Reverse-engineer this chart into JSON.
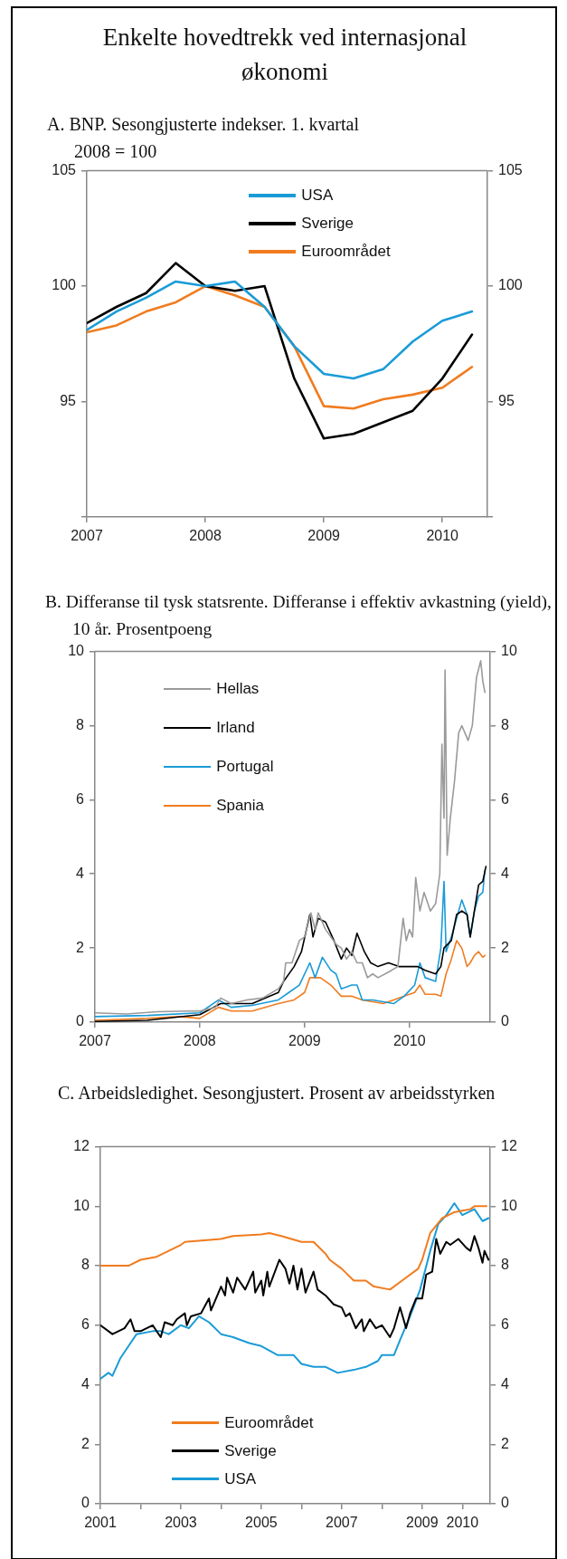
{
  "chart_data": [
    {
      "type": "line",
      "title": "Enkelte hovedtrekk ved internasjonal økonomi",
      "subtitle": "A.   BNP. Sesongjusterte indekser. 1. kvartal 2008 = 100",
      "x": [
        2007,
        2007.25,
        2007.5,
        2007.75,
        2008,
        2008.25,
        2008.5,
        2008.75,
        2009,
        2009.25,
        2009.5,
        2009.75,
        2010,
        2010.25
      ],
      "series": [
        {
          "name": "USA",
          "color": "#1a9bd7",
          "values": [
            98.1,
            98.9,
            99.5,
            100.2,
            100.0,
            100.2,
            99.1,
            97.4,
            96.2,
            96.0,
            96.4,
            97.6,
            98.5,
            98.9
          ]
        },
        {
          "name": "Sverige",
          "color": "#000000",
          "values": [
            98.4,
            99.1,
            99.7,
            101.0,
            100.0,
            99.8,
            100.0,
            96.0,
            93.4,
            93.6,
            94.1,
            94.6,
            96.0,
            97.9
          ]
        },
        {
          "name": "Euroområdet",
          "color": "#f07c1f",
          "values": [
            98.0,
            98.3,
            98.9,
            99.3,
            100.0,
            99.6,
            99.1,
            97.4,
            94.8,
            94.7,
            95.1,
            95.3,
            95.6,
            96.5
          ]
        }
      ],
      "xlim": [
        2007,
        2010.38
      ],
      "xticks": [
        2007,
        2008,
        2009,
        2010
      ],
      "ylim": [
        90,
        105
      ],
      "yticks": [
        {
          "value": 90,
          "label": null
        },
        95,
        100,
        105
      ],
      "y2lim": [
        90,
        105
      ],
      "y2ticks": [
        {
          "value": 90,
          "label": null
        },
        95,
        100,
        105
      ],
      "legend": "top",
      "line_style": "solid",
      "marker": "none"
    },
    {
      "type": "line",
      "title": "B.  Differanse til tysk statsrente. Differanse i effektiv avkastning (yield), 10 år. Prosentpoeng",
      "series": [
        {
          "name": "Hellas",
          "color": "#9a9a9a",
          "x": [
            2007,
            2007.3,
            2007.6,
            2007.9,
            2008,
            2008.15,
            2008.2,
            2008.3,
            2008.45,
            2008.6,
            2008.75,
            2008.8,
            2008.82,
            2008.88,
            2008.95,
            2009,
            2009.06,
            2009.1,
            2009.13,
            2009.2,
            2009.3,
            2009.35,
            2009.4,
            2009.45,
            2009.5,
            2009.55,
            2009.6,
            2009.65,
            2009.7,
            2009.8,
            2009.89,
            2009.94,
            2009.97,
            2010,
            2010.03,
            2010.06,
            2010.1,
            2010.14,
            2010.2,
            2010.25,
            2010.29,
            2010.31,
            2010.33,
            2010.34,
            2010.36,
            2010.39,
            2010.43,
            2010.47,
            2010.5,
            2010.53,
            2010.56,
            2010.6,
            2010.64,
            2010.68,
            2010.7,
            2010.72
          ],
          "values": [
            0.25,
            0.22,
            0.28,
            0.3,
            0.3,
            0.4,
            0.65,
            0.5,
            0.6,
            0.65,
            0.9,
            1.1,
            1.6,
            1.6,
            2.2,
            2.3,
            2.95,
            2.5,
            2.95,
            2.5,
            2.1,
            2.0,
            1.7,
            1.9,
            1.6,
            1.6,
            1.2,
            1.3,
            1.2,
            1.35,
            1.5,
            2.8,
            2.2,
            2.5,
            2.3,
            3.9,
            3.0,
            3.5,
            3.0,
            3.2,
            4.0,
            7.5,
            5.5,
            9.5,
            4.5,
            5.5,
            6.5,
            7.8,
            8.0,
            7.8,
            7.6,
            8.0,
            9.3,
            9.75,
            9.2,
            8.9
          ]
        },
        {
          "name": "Irland",
          "color": "#000000",
          "x": [
            2007,
            2007.5,
            2008,
            2008.2,
            2008.5,
            2008.75,
            2008.8,
            2008.9,
            2008.97,
            2009.05,
            2009.08,
            2009.13,
            2009.2,
            2009.28,
            2009.35,
            2009.4,
            2009.45,
            2009.5,
            2009.57,
            2009.63,
            2009.7,
            2009.8,
            2009.9,
            2010,
            2010.08,
            2010.15,
            2010.25,
            2010.3,
            2010.33,
            2010.4,
            2010.45,
            2010.5,
            2010.55,
            2010.58,
            2010.62,
            2010.66,
            2010.7,
            2010.73
          ],
          "values": [
            0.02,
            0.05,
            0.2,
            0.5,
            0.5,
            0.8,
            1.1,
            1.5,
            1.9,
            2.9,
            2.3,
            2.8,
            2.7,
            2.2,
            1.7,
            2.0,
            1.8,
            2.4,
            1.9,
            1.6,
            1.5,
            1.6,
            1.5,
            1.5,
            1.5,
            1.4,
            1.3,
            1.5,
            2.0,
            2.2,
            2.9,
            3.0,
            2.9,
            2.3,
            3.0,
            3.7,
            3.8,
            4.2
          ]
        },
        {
          "name": "Portugal",
          "color": "#1a9bd7",
          "x": [
            2007,
            2007.5,
            2008,
            2008.18,
            2008.3,
            2008.5,
            2008.75,
            2008.85,
            2008.95,
            2009.05,
            2009.1,
            2009.17,
            2009.25,
            2009.3,
            2009.35,
            2009.45,
            2009.5,
            2009.55,
            2009.65,
            2009.75,
            2009.85,
            2009.95,
            2010.05,
            2010.1,
            2010.15,
            2010.25,
            2010.3,
            2010.33,
            2010.35,
            2010.4,
            2010.45,
            2010.5,
            2010.55,
            2010.58,
            2010.62,
            2010.66,
            2010.7,
            2010.72
          ],
          "values": [
            0.15,
            0.18,
            0.25,
            0.6,
            0.4,
            0.45,
            0.6,
            0.8,
            1.0,
            1.6,
            1.2,
            1.75,
            1.4,
            1.3,
            0.9,
            1.0,
            1.0,
            0.6,
            0.6,
            0.55,
            0.5,
            0.7,
            1.0,
            1.6,
            1.2,
            1.1,
            2.0,
            3.8,
            1.9,
            2.3,
            2.8,
            3.3,
            2.9,
            2.3,
            3.0,
            3.4,
            3.5,
            4.1
          ]
        },
        {
          "name": "Spania",
          "color": "#f07c1f",
          "x": [
            2007,
            2007.5,
            2007.8,
            2008,
            2008.18,
            2008.3,
            2008.5,
            2008.75,
            2008.9,
            2009,
            2009.05,
            2009.15,
            2009.25,
            2009.35,
            2009.45,
            2009.55,
            2009.65,
            2009.75,
            2009.85,
            2009.95,
            2010.05,
            2010.1,
            2010.15,
            2010.25,
            2010.3,
            2010.35,
            2010.4,
            2010.45,
            2010.5,
            2010.55,
            2010.58,
            2010.62,
            2010.66,
            2010.7,
            2010.72
          ],
          "values": [
            0.05,
            0.1,
            0.15,
            0.1,
            0.4,
            0.3,
            0.3,
            0.5,
            0.6,
            0.8,
            1.2,
            1.2,
            1.0,
            0.7,
            0.7,
            0.6,
            0.55,
            0.5,
            0.6,
            0.7,
            0.8,
            1.0,
            0.75,
            0.75,
            0.7,
            1.3,
            1.7,
            2.2,
            2.0,
            1.5,
            1.6,
            1.8,
            1.9,
            1.75,
            1.8
          ]
        }
      ],
      "xlim": [
        2007,
        2010.77
      ],
      "xticks": [
        2007,
        2008,
        2009,
        2010
      ],
      "ylim": [
        0,
        10
      ],
      "yticks": [
        0,
        2,
        4,
        6,
        8,
        10
      ],
      "y2lim": [
        0,
        10
      ],
      "y2ticks": [
        0,
        2,
        4,
        6,
        8,
        10
      ],
      "legend": "top left",
      "line_style": "solid",
      "marker": "none"
    },
    {
      "type": "line",
      "title": "C.  Arbeidsledighet. Sesongjustert. Prosent av arbeidsstyrken",
      "series": [
        {
          "name": "Euroområdet",
          "color": "#f07c1f",
          "x": [
            2001,
            2001.7,
            2002,
            2002.4,
            2002.7,
            2003,
            2003.1,
            2004,
            2004.3,
            2005,
            2005.2,
            2005.5,
            2006,
            2006.3,
            2006.6,
            2006.7,
            2007,
            2007.3,
            2007.6,
            2007.8,
            2008.2,
            2008.5,
            2008.9,
            2009,
            2009.2,
            2009.5,
            2009.8,
            2010.2,
            2010.3,
            2010.6
          ],
          "values": [
            8.0,
            8.0,
            8.2,
            8.3,
            8.5,
            8.7,
            8.8,
            8.9,
            9.0,
            9.05,
            9.1,
            9.0,
            8.8,
            8.8,
            8.4,
            8.2,
            7.9,
            7.5,
            7.5,
            7.3,
            7.2,
            7.5,
            7.9,
            8.2,
            9.1,
            9.6,
            9.8,
            9.9,
            10.0,
            10.0
          ]
        },
        {
          "name": "Sverige",
          "color": "#000000",
          "x": [
            2001,
            2001.3,
            2001.6,
            2001.75,
            2001.85,
            2002,
            2002.3,
            2002.5,
            2002.6,
            2002.8,
            2002.9,
            2003.1,
            2003.15,
            2003.25,
            2003.5,
            2003.7,
            2003.75,
            2004,
            2004.1,
            2004.15,
            2004.3,
            2004.4,
            2004.6,
            2004.8,
            2004.85,
            2005,
            2005.05,
            2005.15,
            2005.2,
            2005.45,
            2005.6,
            2005.7,
            2005.8,
            2005.9,
            2006,
            2006.1,
            2006.3,
            2006.4,
            2006.6,
            2006.8,
            2007,
            2007.1,
            2007.2,
            2007.35,
            2007.5,
            2007.55,
            2007.7,
            2007.85,
            2008,
            2008.2,
            2008.3,
            2008.45,
            2008.6,
            2008.7,
            2008.85,
            2009,
            2009.1,
            2009.25,
            2009.35,
            2009.45,
            2009.6,
            2009.7,
            2009.9,
            2010.1,
            2010.2,
            2010.3,
            2010.4,
            2010.5,
            2010.55,
            2010.65
          ],
          "values": [
            6.0,
            5.7,
            5.9,
            6.2,
            5.8,
            5.8,
            6.0,
            5.6,
            6.1,
            6.0,
            6.2,
            6.4,
            6.0,
            6.3,
            6.4,
            6.9,
            6.5,
            7.3,
            7.0,
            7.6,
            7.1,
            7.6,
            7.2,
            7.8,
            7.1,
            7.5,
            7.0,
            7.8,
            7.3,
            8.2,
            7.9,
            7.4,
            8.0,
            7.2,
            7.9,
            7.1,
            7.8,
            7.2,
            7.0,
            6.7,
            6.6,
            6.3,
            6.4,
            5.9,
            6.2,
            5.8,
            6.2,
            5.9,
            6.0,
            5.6,
            5.9,
            6.6,
            5.9,
            6.4,
            6.9,
            6.9,
            7.7,
            7.8,
            8.9,
            8.4,
            8.8,
            8.7,
            8.9,
            8.6,
            8.5,
            9.0,
            8.6,
            8.1,
            8.5,
            8.2
          ]
        },
        {
          "name": "USA",
          "color": "#1a9bd7",
          "x": [
            2001,
            2001.2,
            2001.3,
            2001.5,
            2001.7,
            2001.9,
            2002.3,
            2002.5,
            2002.7,
            2003,
            2003.2,
            2003.45,
            2003.7,
            2004,
            2004.3,
            2004.7,
            2005,
            2005.4,
            2005.8,
            2006,
            2006.3,
            2006.6,
            2006.9,
            2007.3,
            2007.6,
            2007.9,
            2008,
            2008.3,
            2008.45,
            2008.7,
            2008.95,
            2009.2,
            2009.4,
            2009.6,
            2009.8,
            2010,
            2010.3,
            2010.5,
            2010.65
          ],
          "values": [
            4.2,
            4.4,
            4.3,
            4.9,
            5.3,
            5.7,
            5.8,
            5.8,
            5.7,
            6.0,
            5.9,
            6.3,
            6.1,
            5.7,
            5.6,
            5.4,
            5.3,
            5.0,
            5.0,
            4.7,
            4.6,
            4.6,
            4.4,
            4.5,
            4.6,
            4.8,
            5.0,
            5.0,
            5.5,
            6.3,
            7.2,
            8.5,
            9.4,
            9.7,
            10.1,
            9.7,
            9.9,
            9.5,
            9.6
          ]
        }
      ],
      "xlim": [
        2001,
        2010.69
      ],
      "xticks": [
        2001,
        {
          "value": 2002,
          "label": null
        },
        2003,
        {
          "value": 2004,
          "label": null
        },
        2005,
        {
          "value": 2006,
          "label": null
        },
        2007,
        {
          "value": 2008,
          "label": null
        },
        2009,
        2010
      ],
      "ylim": [
        0,
        12
      ],
      "yticks": [
        0,
        2,
        4,
        6,
        8,
        10,
        12
      ],
      "y2lim": [
        0,
        12
      ],
      "y2ticks": [
        0,
        2,
        4,
        6,
        8,
        10,
        12
      ],
      "legend": "bottom",
      "line_style": "solid",
      "marker": "none"
    }
  ]
}
